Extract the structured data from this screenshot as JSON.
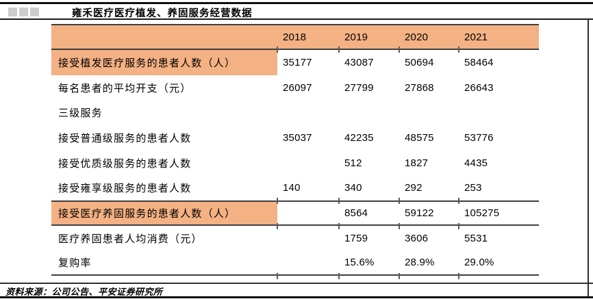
{
  "colors": {
    "highlight_fill": "#F4B183",
    "rule_dark": "#101010",
    "rule_table": "#3f3f3f"
  },
  "footer": {
    "source": "资料来源：公司公告、平安证券研究所"
  },
  "chart_data": {
    "type": "table",
    "title": "雍禾医疗医疗植发、养固服务经营数据",
    "columns": [
      "",
      "2018",
      "2019",
      "2020",
      "2021"
    ],
    "rows": [
      {
        "label": "接受植发医疗服务的患者人数（人）",
        "highlight": true,
        "values": [
          "35177",
          "43087",
          "50694",
          "58464"
        ]
      },
      {
        "label": "每名患者的平均开支（元）",
        "highlight": false,
        "values": [
          "26097",
          "27799",
          "27868",
          "26643"
        ]
      },
      {
        "label": "三级服务",
        "highlight": false,
        "values": [
          "",
          "",
          "",
          ""
        ]
      },
      {
        "label": "接受普通级服务的患者人数",
        "highlight": false,
        "values": [
          "35037",
          "42235",
          "48575",
          "53776"
        ]
      },
      {
        "label": "接受优质级服务的患者人数",
        "highlight": false,
        "values": [
          "",
          "512",
          "1827",
          "4435"
        ]
      },
      {
        "label": "接受雍享级服务的患者人数",
        "highlight": false,
        "values": [
          "140",
          "340",
          "292",
          "253"
        ]
      },
      {
        "label": "接受医疗养固服务的患者人数（人）",
        "highlight": true,
        "values": [
          "",
          "8564",
          "59122",
          "105275"
        ]
      },
      {
        "label": "医疗养固患者人均消费（元）",
        "highlight": false,
        "values": [
          "",
          "1759",
          "3606",
          "5531"
        ]
      },
      {
        "label": "复购率",
        "highlight": false,
        "values": [
          "",
          "15.6%",
          "28.9%",
          "29.0%"
        ]
      }
    ]
  }
}
